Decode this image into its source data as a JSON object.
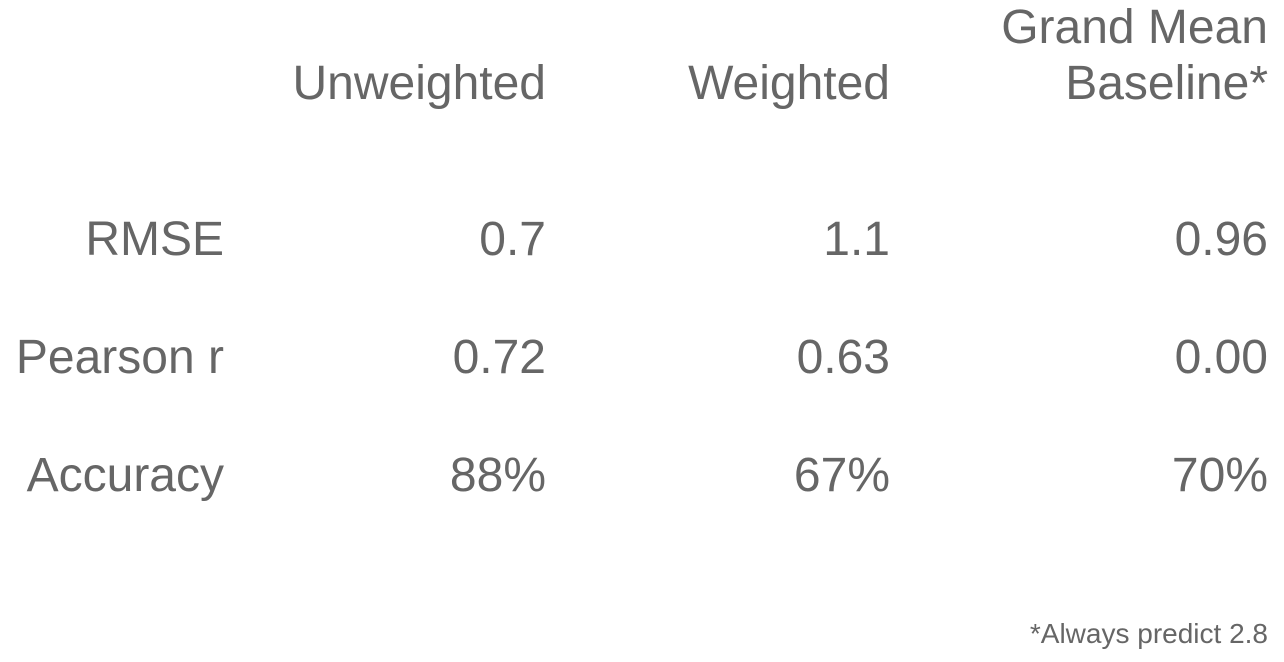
{
  "chart_data": {
    "type": "table",
    "columns": [
      "Unweighted",
      "Weighted",
      "Grand Mean Baseline*"
    ],
    "header_lines": {
      "unweighted": [
        "Unweighted"
      ],
      "weighted": [
        "Weighted"
      ],
      "grand_mean": [
        "Grand Mean",
        "Baseline*"
      ]
    },
    "rows": [
      {
        "label": "RMSE",
        "values": [
          "0.7",
          "1.1",
          "0.96"
        ]
      },
      {
        "label": "Pearson r",
        "values": [
          "0.72",
          "0.63",
          "0.00"
        ]
      },
      {
        "label": "Accuracy",
        "values": [
          "88%",
          "67%",
          "70%"
        ]
      }
    ],
    "footnote": "*Always predict 2.8"
  }
}
